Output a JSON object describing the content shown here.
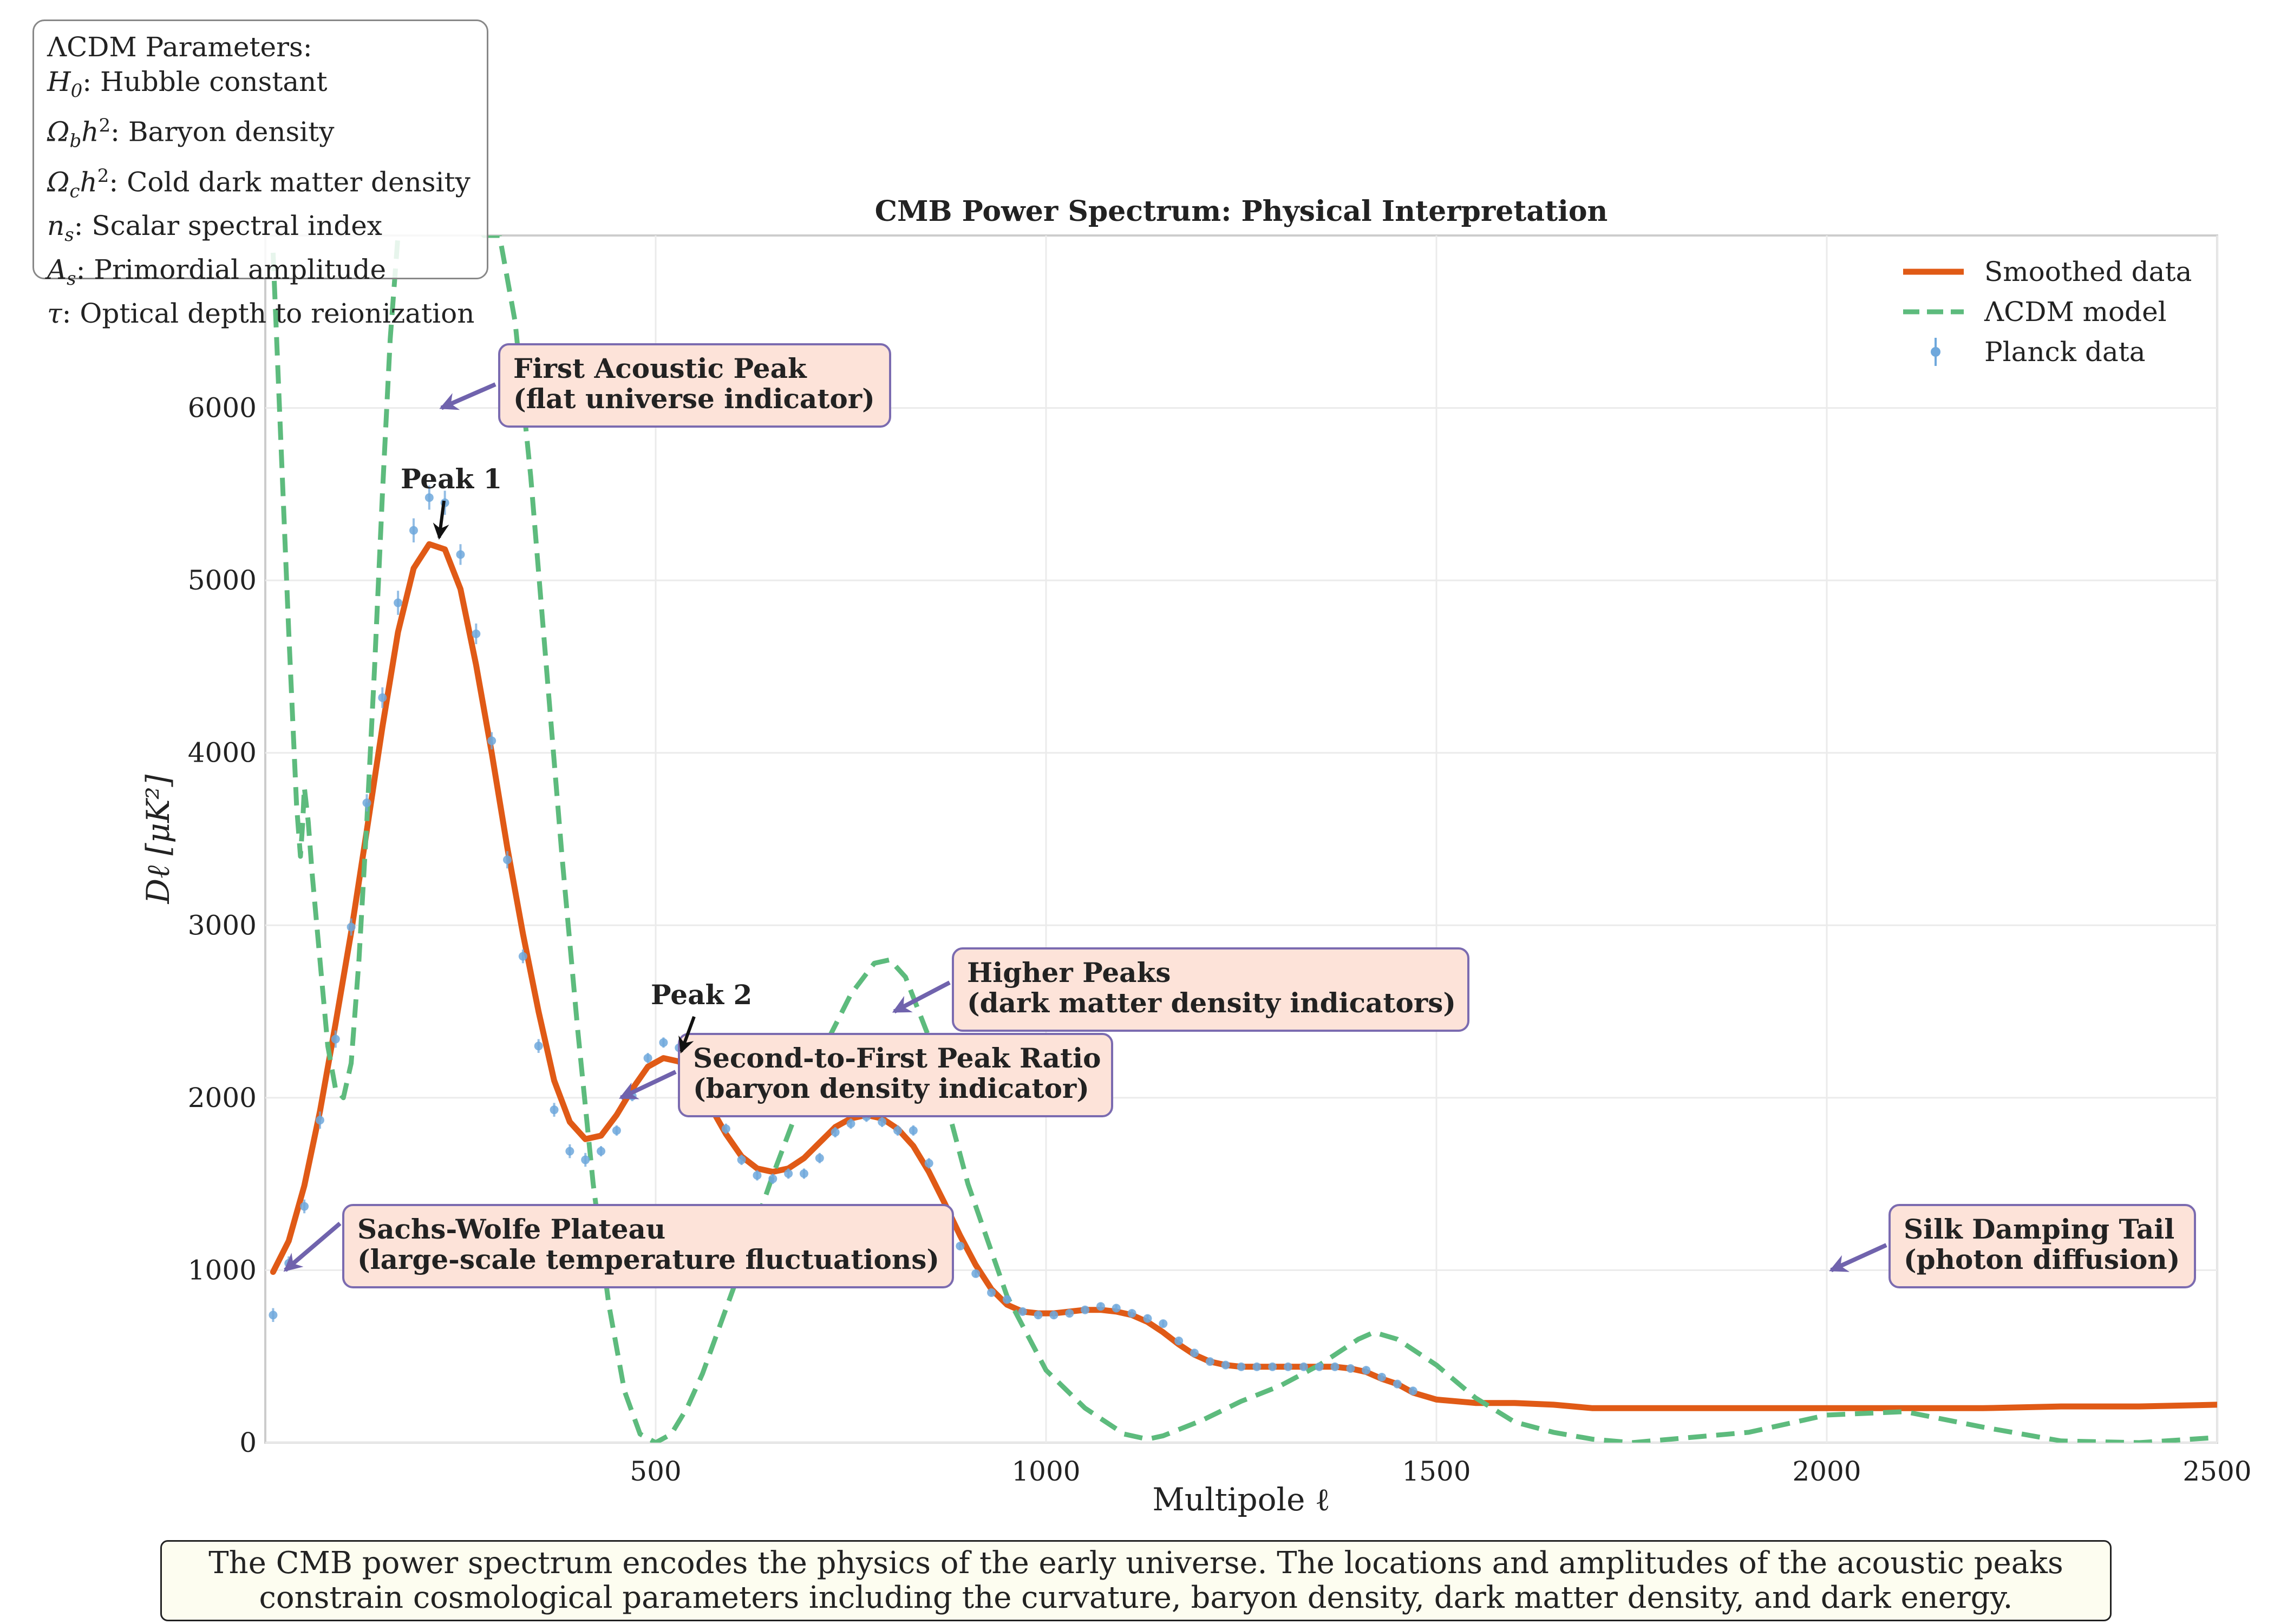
{
  "chart_data": {
    "type": "line",
    "title": "CMB Power Spectrum: Physical Interpretation",
    "xlabel": "Multipole ℓ",
    "ylabel": "Dℓ [μK²]",
    "xlim": [
      0,
      2500
    ],
    "ylim": [
      0,
      7000
    ],
    "xticks": [
      500,
      1000,
      1500,
      2000,
      2500
    ],
    "xtick_labels": [
      "500",
      "1000",
      "1500",
      "2000",
      "2500"
    ],
    "yticks": [
      0,
      1000,
      2000,
      3000,
      4000,
      5000,
      6000
    ],
    "ytick_labels": [
      "0",
      "1000",
      "2000",
      "3000",
      "4000",
      "5000",
      "6000"
    ],
    "grid": true,
    "legend_position": "top-right",
    "series": [
      {
        "name": "Smoothed data",
        "color": "#e05a16",
        "style": "solid",
        "x": [
          10,
          30,
          50,
          70,
          90,
          110,
          130,
          150,
          170,
          190,
          210,
          230,
          250,
          270,
          290,
          310,
          330,
          350,
          370,
          390,
          410,
          430,
          450,
          470,
          490,
          510,
          530,
          550,
          570,
          590,
          610,
          630,
          650,
          670,
          690,
          710,
          730,
          750,
          770,
          790,
          810,
          830,
          850,
          870,
          890,
          910,
          930,
          950,
          970,
          990,
          1010,
          1030,
          1050,
          1070,
          1090,
          1110,
          1130,
          1150,
          1170,
          1190,
          1210,
          1230,
          1250,
          1270,
          1290,
          1310,
          1330,
          1350,
          1370,
          1390,
          1410,
          1430,
          1450,
          1470,
          1500,
          1550,
          1600,
          1650,
          1700,
          1800,
          1900,
          2000,
          2100,
          2200,
          2300,
          2400,
          2500
        ],
        "values": [
          990,
          1170,
          1490,
          1920,
          2430,
          2960,
          3550,
          4150,
          4700,
          5070,
          5210,
          5180,
          4950,
          4510,
          4000,
          3450,
          2950,
          2500,
          2100,
          1860,
          1760,
          1780,
          1900,
          2050,
          2180,
          2230,
          2210,
          2100,
          1950,
          1790,
          1660,
          1590,
          1570,
          1590,
          1650,
          1740,
          1830,
          1880,
          1900,
          1880,
          1820,
          1720,
          1570,
          1390,
          1200,
          1030,
          890,
          800,
          760,
          750,
          750,
          760,
          770,
          770,
          760,
          740,
          700,
          640,
          570,
          510,
          470,
          450,
          440,
          440,
          440,
          440,
          440,
          440,
          440,
          430,
          410,
          370,
          340,
          290,
          250,
          230,
          230,
          220,
          200,
          200,
          200,
          200,
          200,
          200,
          210,
          210,
          220
        ]
      },
      {
        "name": "ΛCDM model",
        "color": "#5dbb7d",
        "style": "dashed",
        "x": [
          10,
          20,
          30,
          40,
          45,
          48,
          50,
          55,
          60,
          70,
          80,
          90,
          100,
          110,
          120,
          130,
          140,
          150,
          160,
          170,
          180,
          190,
          200,
          220,
          240,
          260,
          280,
          300,
          320,
          340,
          360,
          380,
          400,
          420,
          440,
          460,
          480,
          500,
          520,
          540,
          560,
          600,
          650,
          700,
          750,
          780,
          800,
          820,
          850,
          900,
          950,
          1000,
          1050,
          1100,
          1130,
          1150,
          1200,
          1250,
          1300,
          1350,
          1400,
          1420,
          1450,
          1500,
          1550,
          1600,
          1650,
          1700,
          1750,
          1800,
          1900,
          2000,
          2100,
          2200,
          2300,
          2400,
          2500
        ],
        "values": [
          6900,
          5800,
          4700,
          3700,
          3400,
          3600,
          3800,
          3600,
          3300,
          2800,
          2300,
          2050,
          2000,
          2200,
          2800,
          3600,
          4500,
          5500,
          6400,
          7000,
          7400,
          7500,
          7500,
          7400,
          7200,
          7100,
          7000,
          7000,
          6500,
          5600,
          4500,
          3400,
          2400,
          1500,
          800,
          300,
          50,
          0,
          50,
          200,
          400,
          900,
          1550,
          2150,
          2600,
          2780,
          2800,
          2700,
          2350,
          1500,
          850,
          420,
          200,
          50,
          20,
          40,
          130,
          240,
          330,
          450,
          600,
          640,
          600,
          450,
          260,
          120,
          60,
          20,
          0,
          20,
          60,
          160,
          180,
          90,
          10,
          0,
          30
        ]
      },
      {
        "name": "Planck data",
        "color": "#6fa8dc",
        "style": "markers",
        "x": [
          10,
          30,
          50,
          70,
          90,
          110,
          130,
          150,
          170,
          190,
          210,
          230,
          250,
          270,
          290,
          310,
          330,
          350,
          370,
          390,
          410,
          430,
          450,
          470,
          490,
          510,
          530,
          550,
          570,
          590,
          610,
          630,
          650,
          670,
          690,
          710,
          730,
          750,
          770,
          790,
          810,
          830,
          850,
          870,
          890,
          910,
          930,
          950,
          970,
          990,
          1010,
          1030,
          1050,
          1070,
          1090,
          1110,
          1130,
          1150,
          1170,
          1190,
          1210,
          1230,
          1250,
          1270,
          1290,
          1310,
          1330,
          1350,
          1370,
          1390,
          1410,
          1430,
          1450,
          1470
        ],
        "values": [
          740,
          1040,
          1370,
          1870,
          2340,
          2990,
          3710,
          4320,
          4870,
          5290,
          5480,
          5450,
          5150,
          4690,
          4070,
          3380,
          2820,
          2300,
          1930,
          1690,
          1640,
          1690,
          1810,
          2010,
          2230,
          2320,
          2290,
          2170,
          2030,
          1820,
          1640,
          1550,
          1530,
          1560,
          1560,
          1650,
          1800,
          1850,
          1890,
          1860,
          1810,
          1810,
          1620,
          1330,
          1140,
          980,
          870,
          830,
          760,
          740,
          740,
          750,
          770,
          790,
          780,
          750,
          720,
          690,
          590,
          520,
          470,
          450,
          440,
          440,
          440,
          440,
          440,
          440,
          440,
          430,
          420,
          380,
          340,
          300
        ],
        "errors": [
          40,
          40,
          40,
          50,
          50,
          50,
          50,
          60,
          70,
          70,
          70,
          70,
          60,
          60,
          50,
          50,
          40,
          40,
          40,
          40,
          40,
          30,
          30,
          30,
          30,
          30,
          30,
          30,
          30,
          30,
          30,
          30,
          30,
          30,
          30,
          30,
          30,
          30,
          30,
          30,
          30,
          30,
          30,
          30,
          20,
          20,
          20,
          20,
          20,
          20,
          20,
          20,
          20,
          20,
          20,
          20,
          20,
          20,
          20,
          20,
          20,
          20,
          20,
          20,
          20,
          20,
          20,
          20,
          20,
          20,
          20,
          20,
          20,
          20
        ]
      }
    ],
    "annotations": [
      {
        "text": "First Acoustic Peak\n(flat universe indicator)",
        "arrow_to": [
          220,
          6000
        ]
      },
      {
        "text": "Second-to-First Peak Ratio\n(baryon density indicator)",
        "arrow_to": [
          450,
          2000
        ]
      },
      {
        "text": "Higher Peaks\n(dark matter density indicators)",
        "arrow_to": [
          800,
          2500
        ]
      },
      {
        "text": "Sachs-Wolfe Plateau\n(large-scale temperature fluctuations)",
        "arrow_to": [
          20,
          1000
        ]
      },
      {
        "text": "Silk Damping Tail\n(photon diffusion)",
        "arrow_to": [
          2000,
          1000
        ]
      }
    ],
    "peak_labels": [
      {
        "text": "Peak 1",
        "x": 220,
        "y": 5210
      },
      {
        "text": "Peak 2",
        "x": 530,
        "y": 2230
      }
    ]
  },
  "params_box": {
    "title": "ΛCDM Parameters:",
    "items": [
      {
        "sym": "H",
        "sub": "0",
        "sup": "",
        "desc": ": Hubble constant"
      },
      {
        "sym": "Ω",
        "sub": "b",
        "sup": "h2",
        "desc": ": Baryon density"
      },
      {
        "sym": "Ω",
        "sub": "c",
        "sup": "h2",
        "desc": ": Cold dark matter density"
      },
      {
        "sym": "n",
        "sub": "s",
        "sup": "",
        "desc": ": Scalar spectral index"
      },
      {
        "sym": "A",
        "sub": "s",
        "sup": "",
        "desc": ": Primordial amplitude"
      },
      {
        "sym": "τ",
        "sub": "",
        "sup": "",
        "desc": ": Optical depth to reionization"
      }
    ]
  },
  "caption": {
    "line1": "The CMB power spectrum encodes the physics of the early universe. The locations and amplitudes of the acoustic peaks",
    "line2": "constrain cosmological parameters including the curvature, baryon density, dark matter density, and dark energy."
  },
  "colors": {
    "annotation_fill": "#fde3d9",
    "annotation_border": "#7b6bb0",
    "arrow": "#7063ad",
    "grid": "#ebebeb",
    "axes": "#cccccc"
  }
}
